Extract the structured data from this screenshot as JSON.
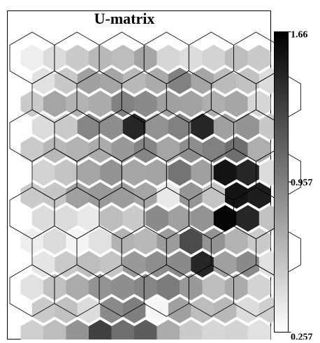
{
  "chart_data": {
    "type": "heatmap",
    "title": "U-matrix",
    "colorbar": {
      "min": 0.257,
      "max": 1.66,
      "tick_labels": [
        "1.66",
        "0.957",
        "0.257"
      ],
      "colormap": "white-to-black"
    },
    "grid": {
      "rows": 13,
      "cols": 11,
      "layout": "hexagonal",
      "cell_shape": "hexagon"
    },
    "values": [
      [
        0.35,
        0.45,
        0.55,
        0.65,
        0.62,
        0.75,
        0.48,
        0.45,
        0.5,
        0.62,
        0.55
      ],
      [
        0.42,
        0.56,
        0.78,
        0.75,
        0.65,
        0.72,
        0.95,
        0.75,
        0.63,
        0.6,
        0.45
      ],
      [
        0.55,
        0.75,
        0.68,
        0.72,
        0.95,
        0.9,
        0.78,
        0.77,
        0.7,
        0.75,
        0.48
      ],
      [
        0.45,
        0.55,
        0.93,
        0.88,
        1.45,
        0.85,
        0.95,
        1.45,
        0.78,
        0.85,
        0.56
      ],
      [
        0.55,
        0.65,
        0.68,
        0.72,
        0.82,
        0.93,
        0.75,
        0.88,
        0.95,
        1.05,
        0.7
      ],
      [
        0.5,
        0.58,
        0.75,
        0.85,
        0.75,
        0.76,
        1.02,
        0.78,
        1.55,
        1.45,
        0.45
      ],
      [
        0.55,
        0.57,
        0.78,
        0.82,
        0.8,
        0.75,
        0.38,
        0.84,
        0.58,
        1.55,
        1.5
      ],
      [
        0.45,
        0.45,
        0.38,
        0.62,
        0.55,
        0.9,
        0.78,
        0.85,
        1.62,
        1.45,
        0.6
      ],
      [
        0.35,
        0.45,
        0.32,
        0.42,
        0.68,
        0.65,
        0.8,
        1.25,
        0.85,
        0.68,
        0.55
      ],
      [
        0.4,
        0.55,
        0.62,
        0.58,
        0.82,
        0.88,
        0.9,
        1.45,
        0.78,
        0.9,
        0.42
      ],
      [
        0.42,
        0.6,
        0.72,
        0.85,
        0.88,
        0.92,
        0.98,
        0.82,
        0.62,
        0.72,
        0.5
      ],
      [
        0.55,
        0.6,
        0.45,
        0.9,
        0.96,
        0.3,
        0.78,
        0.62,
        0.65,
        0.45,
        0.52
      ],
      [
        0.52,
        0.62,
        0.85,
        1.3,
        1.05,
        1.15,
        0.72,
        0.55,
        0.48,
        0.5,
        0.42
      ]
    ]
  }
}
